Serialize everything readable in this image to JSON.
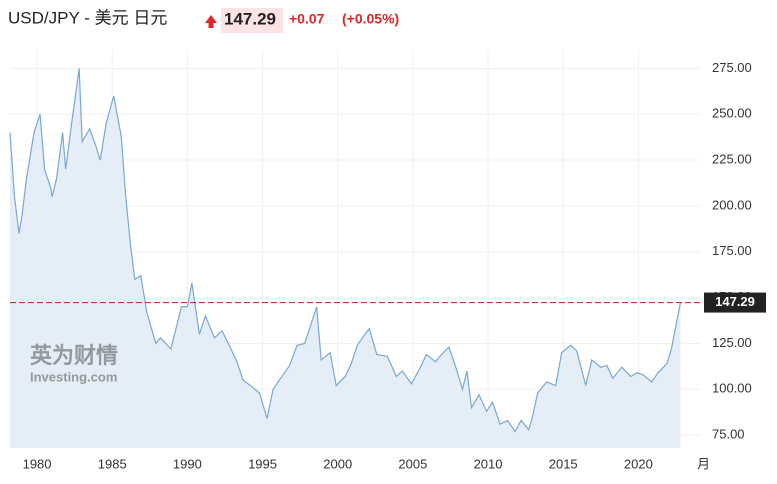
{
  "chart_data": {
    "type": "area",
    "title": "USD/JPY - 美元 日元",
    "price": 147.29,
    "change": "+0.07",
    "change_pct": "(+0.05%)",
    "watermark": [
      "英为财情",
      "Investing.com"
    ],
    "x_axis_label": "月",
    "color": "#7aa8d2",
    "fill": "#e5edf6",
    "reference_color": "#b22222",
    "grid": true,
    "xlim": [
      1978.2,
      2024.1
    ],
    "ylim": [
      68,
      285
    ],
    "xticks": [
      1980,
      1985,
      1990,
      1995,
      2000,
      2005,
      2010,
      2015,
      2020
    ],
    "yticks": [
      {
        "value": 75,
        "label": "75.00"
      },
      {
        "value": 100,
        "label": "100.00"
      },
      {
        "value": 125,
        "label": "125.00"
      },
      {
        "value": 150,
        "label": "150.00"
      },
      {
        "value": 175,
        "label": "175.00"
      },
      {
        "value": 200,
        "label": "200.00"
      },
      {
        "value": 225,
        "label": "225.00"
      },
      {
        "value": 250,
        "label": "250.00"
      },
      {
        "value": 275,
        "label": "275.00"
      }
    ],
    "x": [
      1978.2,
      1978.5,
      1978.8,
      1979.0,
      1979.3,
      1979.8,
      1980.2,
      1980.5,
      1980.9,
      1981.0,
      1981.3,
      1981.7,
      1981.9,
      1982.3,
      1982.8,
      1983.0,
      1983.5,
      1983.9,
      1984.2,
      1984.6,
      1985.1,
      1985.6,
      1985.9,
      1986.2,
      1986.5,
      1986.9,
      1987.3,
      1987.9,
      1988.2,
      1988.9,
      1989.3,
      1989.6,
      1990.0,
      1990.3,
      1990.8,
      1991.2,
      1991.8,
      1992.3,
      1992.9,
      1993.3,
      1993.7,
      1994.2,
      1994.8,
      1995.3,
      1995.7,
      1996.2,
      1996.8,
      1997.3,
      1997.8,
      1998.6,
      1998.9,
      1999.5,
      1999.9,
      2000.5,
      2000.9,
      2001.3,
      2001.9,
      2002.1,
      2002.6,
      2003.3,
      2003.9,
      2004.3,
      2004.9,
      2005.5,
      2005.9,
      2006.5,
      2006.9,
      2007.4,
      2007.9,
      2008.3,
      2008.6,
      2008.9,
      2009.4,
      2009.9,
      2010.3,
      2010.8,
      2011.3,
      2011.8,
      2012.2,
      2012.7,
      2012.9,
      2013.3,
      2013.9,
      2014.5,
      2014.9,
      2015.5,
      2015.9,
      2016.5,
      2016.9,
      2017.5,
      2017.9,
      2018.3,
      2018.9,
      2019.5,
      2019.9,
      2020.3,
      2020.9,
      2021.3,
      2021.9,
      2022.2,
      2022.5,
      2022.8
    ],
    "values": [
      240,
      205,
      185,
      195,
      215,
      240,
      250,
      220,
      210,
      205,
      215,
      240,
      220,
      245,
      275,
      235,
      242,
      233,
      225,
      245,
      260,
      238,
      205,
      180,
      160,
      162,
      142,
      125,
      128,
      122,
      135,
      145,
      145,
      158,
      130,
      140,
      128,
      132,
      122,
      115,
      105,
      102,
      98,
      84,
      100,
      106,
      113,
      124,
      125,
      145,
      116,
      120,
      102,
      107,
      114,
      124,
      131,
      133,
      119,
      118,
      107,
      110,
      103,
      112,
      119,
      115,
      119,
      123,
      111,
      100,
      110,
      90,
      97,
      88,
      93,
      81,
      83,
      77,
      83,
      78,
      83,
      98,
      104,
      102,
      120,
      124,
      121,
      102,
      116,
      112,
      113,
      106,
      112,
      107,
      109,
      108,
      104,
      109,
      114,
      122,
      135,
      147.29
    ]
  }
}
